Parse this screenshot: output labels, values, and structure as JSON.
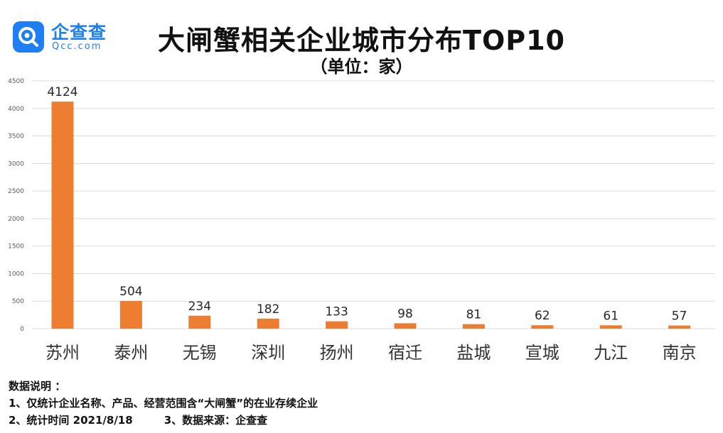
{
  "logo": {
    "name": "企查查",
    "sub": "Qcc.com"
  },
  "header": {
    "title": "大闸蟹相关企业城市分布TOP10",
    "subtitle": "（单位：家）"
  },
  "colors": {
    "bar": "#ed7d31",
    "grid": "#d9d9d9",
    "brand": "#1e7ef2"
  },
  "chart_data": {
    "type": "bar",
    "title": "大闸蟹相关企业城市分布TOP10",
    "unit": "（单位：家）",
    "categories": [
      "苏州",
      "泰州",
      "无锡",
      "深圳",
      "扬州",
      "宿迁",
      "盐城",
      "宣城",
      "九江",
      "南京"
    ],
    "values": [
      4124,
      504,
      234,
      182,
      133,
      98,
      81,
      62,
      61,
      57
    ],
    "ylim": [
      0,
      4500
    ],
    "yticks": [
      0,
      500,
      1000,
      1500,
      2000,
      2500,
      3000,
      3500,
      4000,
      4500
    ],
    "grid": true,
    "data_labels": true
  },
  "notes": {
    "heading": "数据说明 ：",
    "line1": "1、仅统计企业名称、产品、经营范围含“大闸蟹”的在业存续企业",
    "line2a": "2、统计时间 2021/8/18",
    "line2b": "3、数据来源：企查查"
  }
}
